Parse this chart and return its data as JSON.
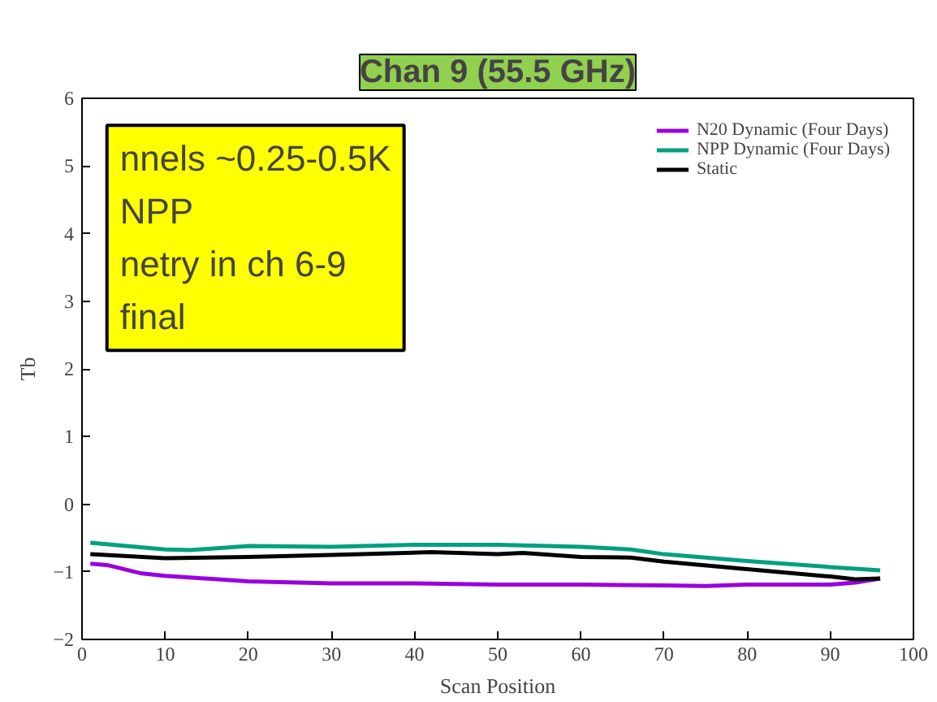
{
  "chart_data": {
    "type": "line",
    "title": "Chan 9 (55.5 GHz)",
    "xlabel": "Scan Position",
    "ylabel": "Tb",
    "xlim": [
      0,
      100
    ],
    "xticks": [
      0,
      10,
      20,
      30,
      40,
      50,
      60,
      70,
      80,
      90,
      100
    ],
    "ylim": [
      -2,
      6
    ],
    "yticks": [
      -2,
      -1,
      0,
      1,
      2,
      3,
      4,
      5,
      6
    ],
    "grid": false,
    "legend": "top right",
    "marker": "none",
    "line_style": "solid",
    "annotations": [
      "nnels ~0.25-0.5K",
      "NPP",
      "netry in ch 6-9",
      "final"
    ],
    "series": [
      {
        "name": "N20 Dynamic (Four Days)",
        "color": "#9900dd",
        "x": [
          1,
          3,
          7,
          10,
          20,
          30,
          40,
          50,
          60,
          70,
          75,
          80,
          90,
          93,
          96
        ],
        "values": [
          -0.88,
          -0.9,
          -1.02,
          -1.06,
          -1.14,
          -1.17,
          -1.17,
          -1.19,
          -1.19,
          -1.2,
          -1.21,
          -1.19,
          -1.19,
          -1.16,
          -1.1
        ]
      },
      {
        "name": "NPP Dynamic (Four Days)",
        "color": "#00a080",
        "x": [
          1,
          10,
          13,
          20,
          30,
          40,
          50,
          60,
          66,
          70,
          80,
          90,
          96
        ],
        "values": [
          -0.57,
          -0.67,
          -0.68,
          -0.62,
          -0.63,
          -0.6,
          -0.6,
          -0.63,
          -0.67,
          -0.74,
          -0.84,
          -0.93,
          -0.98
        ]
      },
      {
        "name": "Static",
        "color": "#000000",
        "x": [
          1,
          10,
          20,
          30,
          42,
          50,
          53,
          60,
          66,
          70,
          80,
          90,
          93,
          96
        ],
        "values": [
          -0.74,
          -0.8,
          -0.78,
          -0.75,
          -0.71,
          -0.74,
          -0.72,
          -0.78,
          -0.79,
          -0.85,
          -0.96,
          -1.07,
          -1.11,
          -1.1
        ]
      }
    ]
  }
}
